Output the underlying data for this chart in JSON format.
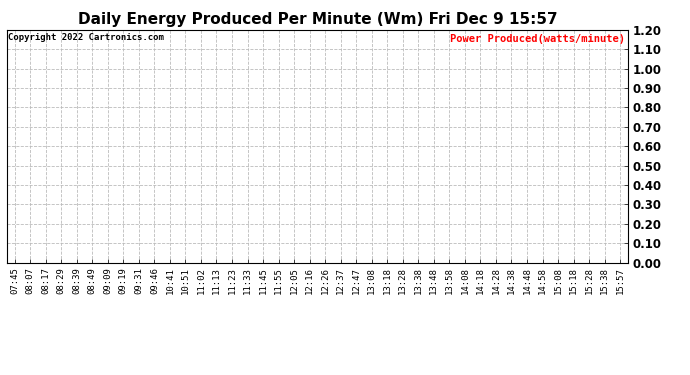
{
  "title": "Daily Energy Produced Per Minute (Wm) Fri Dec 9 15:57",
  "copyright_text": "Copyright 2022 Cartronics.com",
  "legend_label": "Power Produced(watts/minute)",
  "legend_color": "#ff0000",
  "copyright_color": "#000000",
  "background_color": "#ffffff",
  "grid_color": "#bbbbbb",
  "ylim": [
    0.0,
    1.2
  ],
  "yticks": [
    0.0,
    0.1,
    0.2,
    0.3,
    0.4,
    0.5,
    0.6,
    0.7,
    0.8,
    0.9,
    1.0,
    1.1,
    1.2
  ],
  "x_labels": [
    "07:45",
    "08:07",
    "08:17",
    "08:29",
    "08:39",
    "08:49",
    "09:09",
    "09:19",
    "09:31",
    "09:46",
    "10:41",
    "10:51",
    "11:02",
    "11:13",
    "11:23",
    "11:33",
    "11:45",
    "11:55",
    "12:05",
    "12:16",
    "12:26",
    "12:37",
    "12:47",
    "13:08",
    "13:18",
    "13:28",
    "13:38",
    "13:48",
    "13:58",
    "14:08",
    "14:18",
    "14:28",
    "14:38",
    "14:48",
    "14:58",
    "15:08",
    "15:18",
    "15:28",
    "15:38",
    "15:57"
  ],
  "title_fontsize": 11,
  "axis_fontsize": 6.5,
  "copyright_fontsize": 6.5,
  "legend_fontsize": 7.5,
  "ytick_fontsize": 8.5
}
